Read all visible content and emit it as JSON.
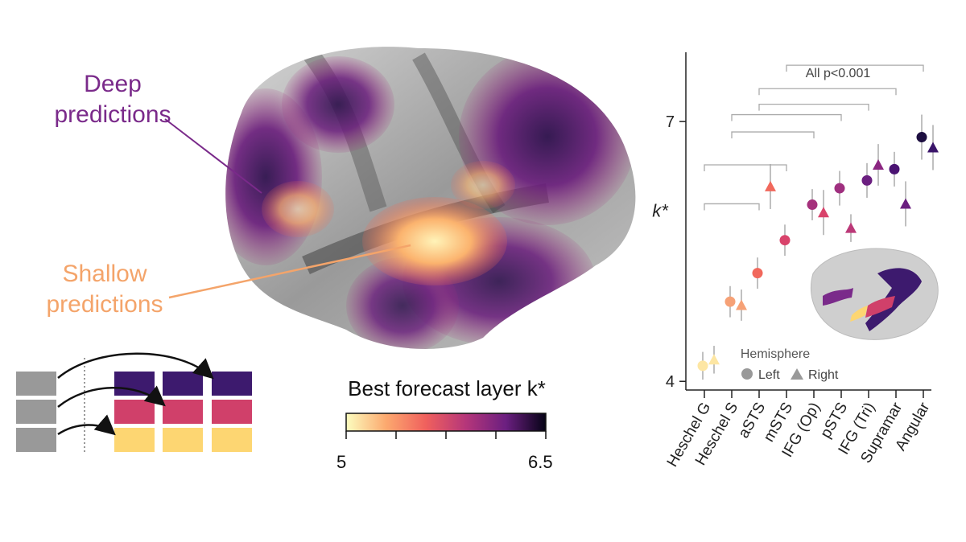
{
  "labels": {
    "deep": "Deep\npredictions",
    "shallow": "Shallow\npredictions"
  },
  "colorbar": {
    "title": "Best forecast layer k*",
    "min_label": "5",
    "max_label": "6.5",
    "min": 5,
    "max": 6.5,
    "colormap": "magma_r"
  },
  "colors": {
    "deep": "#7a2a8a",
    "shallow": "#f4a46a",
    "block_gray": "#999999",
    "block_purple": "#3d1a6e",
    "block_pink": "#d0406a",
    "block_yellow": "#fdd672"
  },
  "chart_data": {
    "type": "scatter",
    "ylabel": "k*",
    "ylim": [
      3.9,
      7.8
    ],
    "yticks": [
      4,
      7
    ],
    "categories": [
      "Heschel G",
      "Heschel S",
      "aSTS",
      "mSTS",
      "IFG (Op)",
      "pSTS",
      "IFG (Tri)",
      "Supramar",
      "Angular"
    ],
    "series": [
      {
        "name": "Left",
        "marker": "circle",
        "values": [
          4.18,
          4.92,
          5.25,
          5.63,
          6.04,
          6.23,
          6.32,
          6.45,
          6.82
        ],
        "error": [
          0.16,
          0.18,
          0.18,
          0.18,
          0.18,
          0.2,
          0.2,
          0.2,
          0.26
        ],
        "colors": [
          "#fde6a3",
          "#f6a176",
          "#f1685c",
          "#d9436b",
          "#a5317c",
          "#9f2f7f",
          "#6b1f80",
          "#4a1372",
          "#1d0e40"
        ]
      },
      {
        "name": "Right",
        "marker": "triangle",
        "values": [
          4.25,
          4.88,
          null,
          6.25,
          5.95,
          5.77,
          6.5,
          6.05,
          6.7
        ],
        "error": [
          0.16,
          0.18,
          null,
          0.26,
          0.26,
          0.16,
          0.24,
          0.26,
          0.26
        ],
        "colors": [
          "#fde6a3",
          "#f6a176",
          null,
          "#f1685c",
          "#d9436b",
          "#bb3878",
          "#8b2681",
          "#6b1f80",
          "#3a1469"
        ],
        "note_x_offset": "triangles plotted to the right of each circle; aSTS triangle sits between aSTS and mSTS"
      }
    ],
    "brackets": [
      {
        "from": "Heschel G",
        "to": "aSTS",
        "y": 6.05
      },
      {
        "from": "Heschel G",
        "to": "mSTS",
        "y": 6.5
      },
      {
        "from": "Heschel S",
        "to": "IFG (Op)",
        "y": 6.88
      },
      {
        "from": "Heschel S",
        "to": "pSTS",
        "y": 7.08
      },
      {
        "from": "aSTS",
        "to": "IFG (Tri)",
        "y": 7.2
      },
      {
        "from": "aSTS",
        "to": "Supramar",
        "y": 7.38
      },
      {
        "from": "mSTS",
        "to": "Angular",
        "y": 7.65
      }
    ],
    "annotation": "All p<0.001",
    "legend": {
      "title": "Hemisphere",
      "items": [
        "Left",
        "Right"
      ],
      "placement": "bottom-right"
    }
  }
}
